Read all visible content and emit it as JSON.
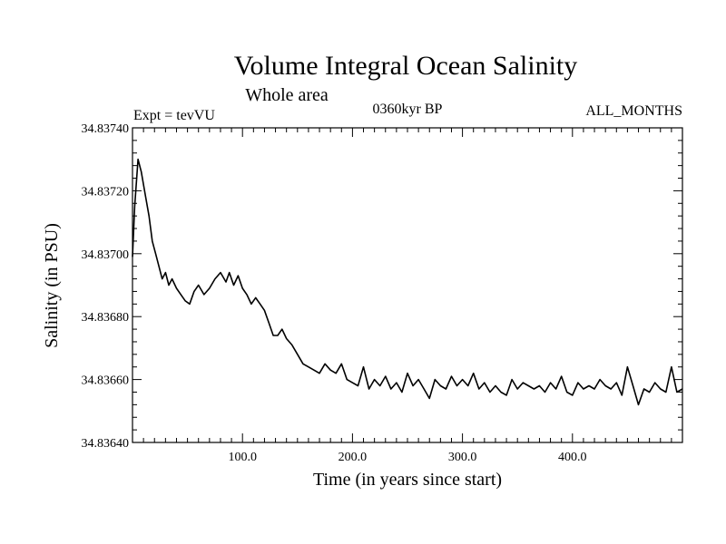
{
  "chart_data": {
    "type": "line",
    "title": "Volume Integral Ocean Salinity",
    "subtitle": "Whole area",
    "annotations": {
      "experiment": "Expt = tevVU",
      "period": "0360kyr BP",
      "months": "ALL_MONTHS"
    },
    "xlabel": "Time (in years since start)",
    "ylabel": "Salinity (in PSU)",
    "xlim": [
      0,
      500
    ],
    "ylim": [
      34.8364,
      34.8374
    ],
    "xticks": [
      100,
      200,
      300,
      400
    ],
    "xtick_labels": [
      "100.0",
      "200.0",
      "300.0",
      "400.0"
    ],
    "yticks": [
      34.8364,
      34.8366,
      34.8368,
      34.837,
      34.8372,
      34.8374
    ],
    "ytick_labels": [
      "34.83640",
      "34.83660",
      "34.83680",
      "34.83700",
      "34.83720",
      "34.83740"
    ],
    "grid": false,
    "line_color": "#000000",
    "series": [
      {
        "x": [
          0,
          2,
          5,
          8,
          12,
          15,
          18,
          21,
          24,
          27,
          30,
          33,
          36,
          40,
          44,
          48,
          52,
          56,
          60,
          65,
          70,
          75,
          80,
          85,
          88,
          92,
          96,
          100,
          104,
          108,
          112,
          116,
          120,
          124,
          128,
          132,
          136,
          140,
          145,
          150,
          155,
          160,
          165,
          170,
          175,
          180,
          185,
          190,
          195,
          200,
          205,
          210,
          215,
          220,
          225,
          230,
          235,
          240,
          245,
          250,
          255,
          260,
          265,
          270,
          275,
          280,
          285,
          290,
          295,
          300,
          305,
          310,
          315,
          320,
          325,
          330,
          335,
          340,
          345,
          350,
          355,
          360,
          365,
          370,
          375,
          380,
          385,
          390,
          395,
          400,
          405,
          410,
          415,
          420,
          425,
          430,
          435,
          440,
          445,
          450,
          455,
          460,
          465,
          470,
          475,
          480,
          485,
          490,
          495,
          500
        ],
        "values": [
          34.83699,
          34.83715,
          34.8373,
          34.83726,
          34.83718,
          34.83712,
          34.83704,
          34.837,
          34.83696,
          34.83692,
          34.83694,
          34.8369,
          34.83692,
          34.83689,
          34.83687,
          34.83685,
          34.83684,
          34.83688,
          34.8369,
          34.83687,
          34.83689,
          34.83692,
          34.83694,
          34.83691,
          34.83694,
          34.8369,
          34.83693,
          34.83689,
          34.83687,
          34.83684,
          34.83686,
          34.83684,
          34.83682,
          34.83678,
          34.83674,
          34.83674,
          34.83676,
          34.83673,
          34.83671,
          34.83668,
          34.83665,
          34.83664,
          34.83663,
          34.83662,
          34.83665,
          34.83663,
          34.83662,
          34.83665,
          34.8366,
          34.83659,
          34.83658,
          34.83664,
          34.83657,
          34.8366,
          34.83658,
          34.83661,
          34.83657,
          34.83659,
          34.83656,
          34.83662,
          34.83658,
          34.8366,
          34.83657,
          34.83654,
          34.8366,
          34.83658,
          34.83657,
          34.83661,
          34.83658,
          34.8366,
          34.83658,
          34.83662,
          34.83657,
          34.83659,
          34.83656,
          34.83658,
          34.83656,
          34.83655,
          34.8366,
          34.83657,
          34.83659,
          34.83658,
          34.83657,
          34.83658,
          34.83656,
          34.83659,
          34.83657,
          34.83661,
          34.83656,
          34.83655,
          34.83659,
          34.83657,
          34.83658,
          34.83657,
          34.8366,
          34.83658,
          34.83657,
          34.83659,
          34.83655,
          34.83664,
          34.83658,
          34.83652,
          34.83657,
          34.83656,
          34.83659,
          34.83657,
          34.83656,
          34.83664,
          34.83656,
          34.83657
        ]
      }
    ]
  }
}
